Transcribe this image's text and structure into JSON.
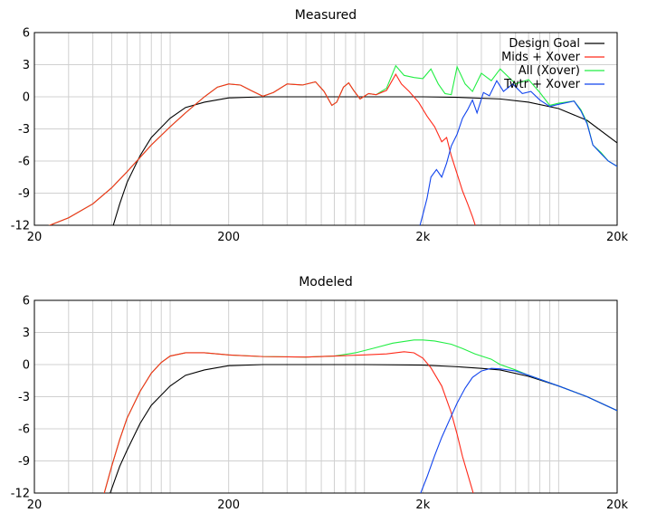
{
  "figure": {
    "colors": {
      "design_goal": "#000000",
      "mids_xover": "#ff2a1a",
      "all_xover": "#22ee44",
      "twtr_xover": "#1144ee",
      "overlap": "#33aa33",
      "twtr_all_overlap": "#1f6fb0"
    }
  },
  "chart_data": [
    {
      "type": "line",
      "title": "Measured",
      "xscale": "log",
      "xlim": [
        20,
        20000
      ],
      "ylim": [
        -12,
        6
      ],
      "xticks": [
        20,
        200,
        2000,
        20000
      ],
      "xtick_labels": [
        "20",
        "200",
        "2k",
        "20k"
      ],
      "yticks": [
        6,
        3,
        0,
        -3,
        -6,
        -9,
        -12
      ],
      "ytick_labels": [
        "6",
        "3",
        "0",
        "-3",
        "-6",
        "-9",
        "-12"
      ],
      "grid": true,
      "legend": "top-right",
      "series": [
        {
          "name": "Design Goal",
          "color": "#000000",
          "points": [
            [
              50,
              -12.5
            ],
            [
              55,
              -10
            ],
            [
              60,
              -8
            ],
            [
              70,
              -5.5
            ],
            [
              80,
              -3.8
            ],
            [
              100,
              -2
            ],
            [
              120,
              -1
            ],
            [
              150,
              -0.5
            ],
            [
              200,
              -0.1
            ],
            [
              300,
              0
            ],
            [
              1000,
              0
            ],
            [
              2000,
              0
            ],
            [
              3000,
              -0.05
            ],
            [
              5000,
              -0.2
            ],
            [
              7000,
              -0.5
            ],
            [
              10000,
              -1.1
            ],
            [
              14000,
              -2.2
            ],
            [
              20000,
              -4.3
            ]
          ]
        },
        {
          "name": "Mids + Xover",
          "color": "#ff2a1a",
          "points": [
            [
              20,
              -12.5
            ],
            [
              24,
              -12
            ],
            [
              30,
              -11.3
            ],
            [
              40,
              -10
            ],
            [
              50,
              -8.5
            ],
            [
              60,
              -7
            ],
            [
              80,
              -4.5
            ],
            [
              100,
              -2.8
            ],
            [
              120,
              -1.5
            ],
            [
              150,
              0
            ],
            [
              175,
              0.9
            ],
            [
              200,
              1.2
            ],
            [
              230,
              1.1
            ],
            [
              260,
              0.6
            ],
            [
              300,
              0.05
            ],
            [
              340,
              0.4
            ],
            [
              400,
              1.2
            ],
            [
              480,
              1.1
            ],
            [
              560,
              1.4
            ],
            [
              620,
              0.5
            ],
            [
              680,
              -0.8
            ],
            [
              720,
              -0.5
            ],
            [
              780,
              0.9
            ],
            [
              830,
              1.3
            ],
            [
              880,
              0.6
            ],
            [
              950,
              -0.2
            ],
            [
              1050,
              0.3
            ],
            [
              1150,
              0.2
            ],
            [
              1300,
              0.6
            ],
            [
              1450,
              2.1
            ],
            [
              1550,
              1.2
            ],
            [
              1700,
              0.5
            ],
            [
              1900,
              -0.5
            ],
            [
              2100,
              -1.8
            ],
            [
              2300,
              -2.8
            ],
            [
              2500,
              -4.2
            ],
            [
              2650,
              -3.8
            ],
            [
              2800,
              -5.5
            ],
            [
              3000,
              -7.2
            ],
            [
              3200,
              -8.8
            ],
            [
              3400,
              -10
            ],
            [
              3600,
              -11.2
            ],
            [
              3800,
              -12.5
            ]
          ]
        },
        {
          "name": "All (Xover)",
          "color": "#22ee44",
          "points": [
            [
              20,
              -12.5
            ],
            [
              24,
              -12
            ],
            [
              30,
              -11.3
            ],
            [
              40,
              -10
            ],
            [
              50,
              -8.5
            ],
            [
              60,
              -7
            ],
            [
              80,
              -4.5
            ],
            [
              100,
              -2.8
            ],
            [
              120,
              -1.5
            ],
            [
              150,
              0
            ],
            [
              175,
              0.9
            ],
            [
              200,
              1.2
            ],
            [
              230,
              1.1
            ],
            [
              260,
              0.6
            ],
            [
              300,
              0.05
            ],
            [
              340,
              0.4
            ],
            [
              400,
              1.2
            ],
            [
              480,
              1.1
            ],
            [
              560,
              1.4
            ],
            [
              620,
              0.5
            ],
            [
              680,
              -0.8
            ],
            [
              720,
              -0.5
            ],
            [
              780,
              0.9
            ],
            [
              830,
              1.3
            ],
            [
              880,
              0.6
            ],
            [
              950,
              -0.2
            ],
            [
              1050,
              0.3
            ],
            [
              1150,
              0.2
            ],
            [
              1300,
              0.8
            ],
            [
              1450,
              2.9
            ],
            [
              1600,
              2
            ],
            [
              1800,
              1.8
            ],
            [
              2000,
              1.7
            ],
            [
              2200,
              2.6
            ],
            [
              2400,
              1.2
            ],
            [
              2600,
              0.3
            ],
            [
              2800,
              0.2
            ],
            [
              3000,
              2.8
            ],
            [
              3300,
              1.2
            ],
            [
              3600,
              0.5
            ],
            [
              4000,
              2.2
            ],
            [
              4500,
              1.5
            ],
            [
              5000,
              2.6
            ],
            [
              6000,
              1.2
            ],
            [
              7000,
              1.6
            ],
            [
              8000,
              0.4
            ],
            [
              9000,
              -0.8
            ],
            [
              10000,
              -0.6
            ],
            [
              12000,
              -0.4
            ],
            [
              13000,
              -1.2
            ],
            [
              14000,
              -2.4
            ],
            [
              15000,
              -4.5
            ],
            [
              16500,
              -5.2
            ],
            [
              18000,
              -6
            ],
            [
              20000,
              -6.5
            ]
          ]
        },
        {
          "name": "Twtr + Xover",
          "color": "#1144ee",
          "points": [
            [
              1900,
              -12.5
            ],
            [
              2000,
              -11
            ],
            [
              2100,
              -9.5
            ],
            [
              2200,
              -7.5
            ],
            [
              2350,
              -6.8
            ],
            [
              2500,
              -7.5
            ],
            [
              2650,
              -6.2
            ],
            [
              2800,
              -4.6
            ],
            [
              3000,
              -3.5
            ],
            [
              3200,
              -2
            ],
            [
              3400,
              -1.2
            ],
            [
              3600,
              -0.3
            ],
            [
              3800,
              -1.5
            ],
            [
              4100,
              0.4
            ],
            [
              4400,
              0.1
            ],
            [
              4800,
              1.5
            ],
            [
              5200,
              0.5
            ],
            [
              5800,
              1.2
            ],
            [
              6500,
              0.3
            ],
            [
              7200,
              0.5
            ],
            [
              8000,
              -0.3
            ],
            [
              9000,
              -0.9
            ],
            [
              10000,
              -0.7
            ],
            [
              12000,
              -0.4
            ],
            [
              13000,
              -1.3
            ],
            [
              14000,
              -2.5
            ],
            [
              15000,
              -4.5
            ],
            [
              16500,
              -5.3
            ],
            [
              18000,
              -6
            ],
            [
              20000,
              -6.5
            ]
          ]
        }
      ]
    },
    {
      "type": "line",
      "title": "Modeled",
      "xscale": "log",
      "xlim": [
        20,
        20000
      ],
      "ylim": [
        -12,
        6
      ],
      "xticks": [
        20,
        200,
        2000,
        20000
      ],
      "xtick_labels": [
        "20",
        "200",
        "2k",
        "20k"
      ],
      "yticks": [
        6,
        3,
        0,
        -3,
        -6,
        -9,
        -12
      ],
      "ytick_labels": [
        "6",
        "3",
        "0",
        "-3",
        "-6",
        "-9",
        "-12"
      ],
      "grid": true,
      "legend": "none",
      "series": [
        {
          "color": "#000000",
          "points": [
            [
              48,
              -12.5
            ],
            [
              55,
              -9.5
            ],
            [
              60,
              -8
            ],
            [
              70,
              -5.5
            ],
            [
              80,
              -3.8
            ],
            [
              100,
              -2
            ],
            [
              120,
              -1
            ],
            [
              150,
              -0.5
            ],
            [
              200,
              -0.1
            ],
            [
              300,
              0
            ],
            [
              1000,
              0
            ],
            [
              2000,
              -0.05
            ],
            [
              3000,
              -0.2
            ],
            [
              4000,
              -0.35
            ],
            [
              5000,
              -0.5
            ],
            [
              7000,
              -1.1
            ],
            [
              10000,
              -2
            ],
            [
              14000,
              -3
            ],
            [
              20000,
              -4.3
            ]
          ]
        },
        {
          "color": "#ff2a1a",
          "points": [
            [
              45,
              -12.5
            ],
            [
              50,
              -9.5
            ],
            [
              55,
              -7
            ],
            [
              60,
              -5
            ],
            [
              70,
              -2.5
            ],
            [
              80,
              -0.8
            ],
            [
              90,
              0.2
            ],
            [
              100,
              0.8
            ],
            [
              120,
              1.1
            ],
            [
              150,
              1.1
            ],
            [
              200,
              0.9
            ],
            [
              300,
              0.75
            ],
            [
              500,
              0.7
            ],
            [
              700,
              0.8
            ],
            [
              1000,
              0.9
            ],
            [
              1300,
              1
            ],
            [
              1600,
              1.2
            ],
            [
              1800,
              1.1
            ],
            [
              2000,
              0.6
            ],
            [
              2200,
              -0.3
            ],
            [
              2500,
              -2
            ],
            [
              2800,
              -4.5
            ],
            [
              3000,
              -6.5
            ],
            [
              3200,
              -8.6
            ],
            [
              3500,
              -11
            ],
            [
              3700,
              -12.5
            ]
          ]
        },
        {
          "color": "#22ee44",
          "points": [
            [
              45,
              -12.5
            ],
            [
              50,
              -9.5
            ],
            [
              55,
              -7
            ],
            [
              60,
              -5
            ],
            [
              70,
              -2.5
            ],
            [
              80,
              -0.8
            ],
            [
              90,
              0.2
            ],
            [
              100,
              0.8
            ],
            [
              120,
              1.1
            ],
            [
              150,
              1.1
            ],
            [
              200,
              0.9
            ],
            [
              300,
              0.75
            ],
            [
              500,
              0.7
            ],
            [
              700,
              0.8
            ],
            [
              900,
              1.1
            ],
            [
              1100,
              1.5
            ],
            [
              1400,
              2
            ],
            [
              1800,
              2.3
            ],
            [
              2000,
              2.3
            ],
            [
              2300,
              2.2
            ],
            [
              2800,
              1.9
            ],
            [
              3200,
              1.5
            ],
            [
              3700,
              1
            ],
            [
              4500,
              0.5
            ],
            [
              5000,
              0
            ],
            [
              6000,
              -0.5
            ],
            [
              7000,
              -1
            ],
            [
              10000,
              -2
            ],
            [
              14000,
              -3
            ],
            [
              20000,
              -4.3
            ]
          ]
        },
        {
          "color": "#1144ee",
          "points": [
            [
              1900,
              -12.5
            ],
            [
              2100,
              -10.5
            ],
            [
              2300,
              -8.5
            ],
            [
              2500,
              -6.8
            ],
            [
              2800,
              -4.8
            ],
            [
              3000,
              -3.6
            ],
            [
              3300,
              -2.2
            ],
            [
              3600,
              -1.2
            ],
            [
              4000,
              -0.6
            ],
            [
              4500,
              -0.35
            ],
            [
              5000,
              -0.4
            ],
            [
              6000,
              -0.6
            ],
            [
              7000,
              -1
            ],
            [
              10000,
              -2
            ],
            [
              14000,
              -3
            ],
            [
              20000,
              -4.3
            ]
          ]
        }
      ]
    }
  ]
}
